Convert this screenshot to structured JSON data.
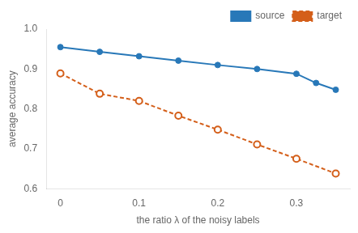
{
  "chart_data": {
    "type": "line",
    "xlabel": "the ratio λ of the noisy labels",
    "ylabel": "average accuracy",
    "series": [
      {
        "name": "source",
        "color": "#2878b8",
        "marker": "circle",
        "line_style": "solid",
        "x": [
          0,
          0.05,
          0.1,
          0.15,
          0.2,
          0.25,
          0.3,
          0.325,
          0.35
        ],
        "values": [
          0.955,
          0.943,
          0.932,
          0.921,
          0.91,
          0.9,
          0.888,
          0.865,
          0.848
        ]
      },
      {
        "name": "target",
        "color": "#d45f1a",
        "marker": "open_circle",
        "line_style": "dashed",
        "x": [
          0,
          0.05,
          0.1,
          0.15,
          0.2,
          0.25,
          0.3,
          0.35
        ],
        "values": [
          0.889,
          0.838,
          0.82,
          0.783,
          0.748,
          0.711,
          0.675,
          0.638
        ]
      }
    ],
    "xlim": [
      -0.018,
      0.368
    ],
    "xticks": [
      0,
      0.1,
      0.2,
      0.3
    ],
    "ylim": [
      0.6,
      1.0
    ],
    "yticks": [
      0.6,
      0.7,
      0.8,
      0.9,
      {
        "value": 1.0,
        "label": "1.0"
      }
    ],
    "grid": false,
    "legend": "upper right"
  }
}
